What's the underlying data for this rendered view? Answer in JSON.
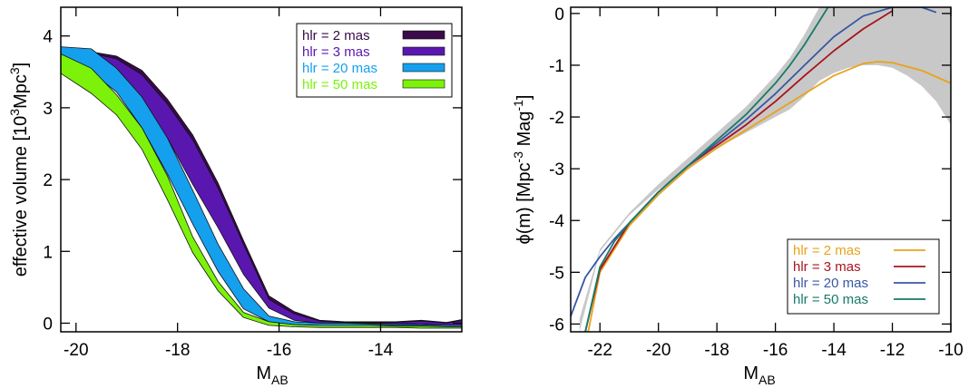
{
  "chart_data": [
    {
      "type": "area",
      "xlabel_main": "M",
      "xlabel_sub": "AB",
      "ylabel_pre": "effective volume [10",
      "ylabel_sup": "3",
      "ylabel_post": "Mpc",
      "ylabel_sup2": "3",
      "ylabel_end": "]",
      "xlim": [
        -20.3,
        -12.4
      ],
      "ylim": [
        -0.12,
        4.4
      ],
      "xticks": [
        -20,
        -18,
        -16,
        -14
      ],
      "yticks": [
        0,
        1,
        2,
        3,
        4
      ],
      "legend_position": "top-right",
      "series": [
        {
          "name": "hlr =   2 mas",
          "color": "#3a0a4a",
          "x": [
            -20.3,
            -19.7,
            -19.2,
            -18.7,
            -18.2,
            -17.7,
            -17.2,
            -16.7,
            -16.2,
            -15.7,
            -15.2,
            -14.7,
            -14.2,
            -13.7,
            -13.2,
            -12.7,
            -12.4
          ],
          "upper": [
            3.8,
            3.78,
            3.72,
            3.52,
            3.12,
            2.62,
            1.95,
            1.15,
            0.38,
            0.16,
            0.04,
            0.02,
            0.02,
            0.02,
            0.04,
            0.01,
            0.05
          ],
          "lower": [
            3.55,
            3.52,
            3.32,
            3.1,
            2.6,
            1.95,
            1.35,
            0.7,
            0.22,
            0.05,
            0.0,
            0.0,
            0.0,
            0.0,
            0.0,
            -0.02,
            -0.02
          ]
        },
        {
          "name": "hlr =   3 mas",
          "color": "#5a17b0",
          "x": [
            -20.3,
            -19.7,
            -19.2,
            -18.7,
            -18.2,
            -17.7,
            -17.2,
            -16.7,
            -16.2,
            -15.7,
            -15.2,
            -14.7,
            -14.2,
            -13.7,
            -13.2,
            -12.7,
            -12.4
          ],
          "upper": [
            3.78,
            3.76,
            3.68,
            3.46,
            3.05,
            2.55,
            1.88,
            1.1,
            0.33,
            0.13,
            0.03,
            0.01,
            0.01,
            0.01,
            0.03,
            0.0,
            0.04
          ],
          "lower": [
            3.53,
            3.5,
            3.3,
            3.08,
            2.58,
            1.93,
            1.33,
            0.68,
            0.21,
            0.04,
            0.0,
            0.0,
            0.0,
            -0.01,
            -0.01,
            -0.03,
            -0.03
          ]
        },
        {
          "name": "hlr = 20 mas",
          "color": "#15a0ee",
          "x": [
            -20.3,
            -19.7,
            -19.2,
            -18.7,
            -18.2,
            -17.7,
            -17.2,
            -16.7,
            -16.2,
            -15.7,
            -15.2,
            -14.7,
            -14.2,
            -13.7,
            -13.2,
            -12.7,
            -12.4
          ],
          "upper": [
            3.85,
            3.82,
            3.55,
            3.15,
            2.58,
            1.85,
            1.1,
            0.48,
            0.1,
            0.02,
            0.0,
            0.0,
            -0.01,
            -0.01,
            -0.02,
            -0.03,
            -0.03
          ],
          "lower": [
            3.63,
            3.5,
            3.22,
            2.72,
            2.08,
            1.38,
            0.72,
            0.2,
            0.02,
            -0.02,
            -0.03,
            -0.03,
            -0.03,
            -0.03,
            -0.04,
            -0.05,
            -0.05
          ]
        },
        {
          "name": "hlr = 50 mas",
          "color": "#7cf20a",
          "x": [
            -20.3,
            -19.7,
            -19.2,
            -18.7,
            -18.2,
            -17.7,
            -17.2,
            -16.7,
            -16.2,
            -15.7,
            -15.2,
            -14.7,
            -14.2,
            -13.7,
            -13.2,
            -12.7,
            -12.4
          ],
          "upper": [
            3.75,
            3.55,
            3.18,
            2.72,
            2.05,
            1.2,
            0.58,
            0.15,
            0.02,
            -0.02,
            -0.03,
            -0.03,
            -0.03,
            -0.04,
            -0.04,
            -0.05,
            -0.05
          ],
          "lower": [
            3.48,
            3.2,
            2.9,
            2.42,
            1.72,
            0.98,
            0.45,
            0.08,
            -0.03,
            -0.05,
            -0.06,
            -0.06,
            -0.06,
            -0.06,
            -0.07,
            -0.07,
            -0.07
          ]
        }
      ]
    },
    {
      "type": "line",
      "xlabel_main": "M",
      "xlabel_sub": "AB",
      "ylabel_pre": "ϕ(m) [Mpc",
      "ylabel_sup": "-3",
      "ylabel_post": " Mag",
      "ylabel_sup2": "-1",
      "ylabel_end": "]",
      "xlim": [
        -23,
        -10
      ],
      "ylim": [
        -6.15,
        0.12
      ],
      "xticks": [
        -22,
        -20,
        -18,
        -16,
        -14,
        -12,
        -10
      ],
      "yticks": [
        0,
        -1,
        -2,
        -3,
        -4,
        -5,
        -6
      ],
      "legend_position": "bottom-right",
      "band": {
        "color": "#c8c8c8",
        "x": [
          -22.7,
          -22.0,
          -21.0,
          -20.0,
          -19.0,
          -18.0,
          -17.0,
          -16.0,
          -15.5,
          -15.0,
          -14.5,
          -14.0,
          -13.5,
          -13.0,
          -12.5,
          -12.0,
          -11.5,
          -11.0,
          -10.5,
          -10.0
        ],
        "upper": [
          -5.9,
          -4.55,
          -3.85,
          -3.3,
          -2.8,
          -2.3,
          -1.8,
          -1.2,
          -0.85,
          -0.4,
          0.12,
          0.12,
          0.12,
          0.12,
          0.12,
          0.12,
          0.12,
          0.12,
          0.12,
          0.12
        ],
        "lower": [
          -6.15,
          -4.6,
          -3.9,
          -3.4,
          -3.0,
          -2.6,
          -2.3,
          -2.0,
          -1.85,
          -1.6,
          -1.3,
          -1.15,
          -1.05,
          -1.0,
          -1.0,
          -1.05,
          -1.2,
          -1.4,
          -1.7,
          -2.15
        ]
      },
      "series": [
        {
          "name": "hlr =   2 mas",
          "color": "#e8a21c",
          "x": [
            -22.4,
            -22.0,
            -21.5,
            -21.0,
            -20.0,
            -19.0,
            -18.0,
            -17.0,
            -16.0,
            -15.0,
            -14.0,
            -13.0,
            -12.5,
            -12.0,
            -11.0,
            -10.0
          ],
          "y": [
            -6.15,
            -5.0,
            -4.55,
            -4.1,
            -3.5,
            -3.0,
            -2.6,
            -2.25,
            -1.9,
            -1.55,
            -1.2,
            -0.97,
            -0.93,
            -0.95,
            -1.1,
            -1.35
          ]
        },
        {
          "name": "hlr =   3 mas",
          "color": "#a8141e",
          "x": [
            -22.5,
            -22.0,
            -21.0,
            -20.0,
            -19.0,
            -18.0,
            -17.0,
            -16.0,
            -15.0,
            -14.0,
            -13.0,
            -12.0
          ],
          "y": [
            -6.15,
            -4.95,
            -4.05,
            -3.45,
            -2.95,
            -2.55,
            -2.15,
            -1.7,
            -1.2,
            -0.72,
            -0.3,
            0.05
          ]
        },
        {
          "name": "hlr = 20 mas",
          "color": "#3757a6",
          "x": [
            -23.0,
            -22.5,
            -22.0,
            -21.5,
            -21.0,
            -20.0,
            -19.0,
            -18.0,
            -17.0,
            -16.0,
            -15.0,
            -14.0,
            -13.0,
            -12.0,
            -11.0,
            -10.5
          ],
          "y": [
            -5.85,
            -5.1,
            -4.7,
            -4.35,
            -4.05,
            -3.45,
            -2.95,
            -2.5,
            -2.05,
            -1.55,
            -1.0,
            -0.45,
            -0.05,
            0.12,
            0.12,
            0.02
          ]
        },
        {
          "name": "hlr = 50 mas",
          "color": "#177a6a",
          "x": [
            -22.5,
            -22.0,
            -21.5,
            -21.0,
            -20.0,
            -19.0,
            -18.0,
            -17.0,
            -16.0,
            -15.5,
            -15.0,
            -14.5,
            -14.2
          ],
          "y": [
            -6.15,
            -4.9,
            -4.4,
            -4.05,
            -3.45,
            -2.95,
            -2.45,
            -1.95,
            -1.35,
            -1.0,
            -0.6,
            -0.15,
            0.12
          ]
        }
      ]
    }
  ]
}
